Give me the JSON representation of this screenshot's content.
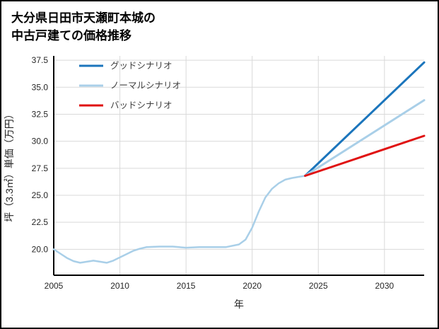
{
  "title": {
    "line1": "大分県日田市天瀬町本城の",
    "line2": "中古戸建ての価格推移"
  },
  "chart_data": {
    "type": "line",
    "title": "大分県日田市天瀬町本城の中古戸建ての価格推移",
    "xlabel": "年",
    "ylabel": "坪（3.3㎡）単価（万円）",
    "xlim": [
      2005,
      2033
    ],
    "ylim": [
      17.6,
      37.9
    ],
    "xticks": [
      2005,
      2010,
      2015,
      2020,
      2025,
      2030
    ],
    "yticks": [
      20.0,
      22.5,
      25.0,
      27.5,
      30.0,
      32.5,
      35.0,
      37.5
    ],
    "grid": true,
    "gridline_color": "#d9d9d9",
    "axis_color": "#000000",
    "legend_position": "upper left",
    "series": [
      {
        "id": "historical-price",
        "label": "",
        "legend": false,
        "color": "#a9cfe8",
        "width": 2.5,
        "x": [
          2005,
          2005.5,
          2006,
          2006.5,
          2007,
          2007.5,
          2008,
          2008.5,
          2009,
          2009.5,
          2010,
          2010.5,
          2011,
          2011.5,
          2012,
          2013,
          2014,
          2015,
          2016,
          2017,
          2018,
          2019,
          2019.5,
          2020,
          2020.5,
          2021,
          2021.5,
          2022,
          2022.5,
          2023,
          2023.5,
          2024
        ],
        "y": [
          20.0,
          19.6,
          19.2,
          18.9,
          18.75,
          18.85,
          18.95,
          18.85,
          18.75,
          18.95,
          19.25,
          19.55,
          19.85,
          20.05,
          20.2,
          20.25,
          20.25,
          20.15,
          20.2,
          20.2,
          20.2,
          20.45,
          20.9,
          22.0,
          23.5,
          24.8,
          25.6,
          26.1,
          26.45,
          26.6,
          26.7,
          26.8
        ]
      },
      {
        "id": "good-scenario",
        "label": "グッドシナリオ",
        "legend": true,
        "color": "#1b75bc",
        "width": 3,
        "x": [
          2024,
          2033
        ],
        "y": [
          26.8,
          37.3
        ]
      },
      {
        "id": "normal-scenario",
        "label": "ノーマルシナリオ",
        "legend": true,
        "color": "#a9cfe8",
        "width": 3,
        "x": [
          2024,
          2033
        ],
        "y": [
          26.8,
          33.8
        ]
      },
      {
        "id": "bad-scenario",
        "label": "バッドシナリオ",
        "legend": true,
        "color": "#e01212",
        "width": 3,
        "x": [
          2024,
          2033
        ],
        "y": [
          26.8,
          30.5
        ]
      }
    ]
  }
}
